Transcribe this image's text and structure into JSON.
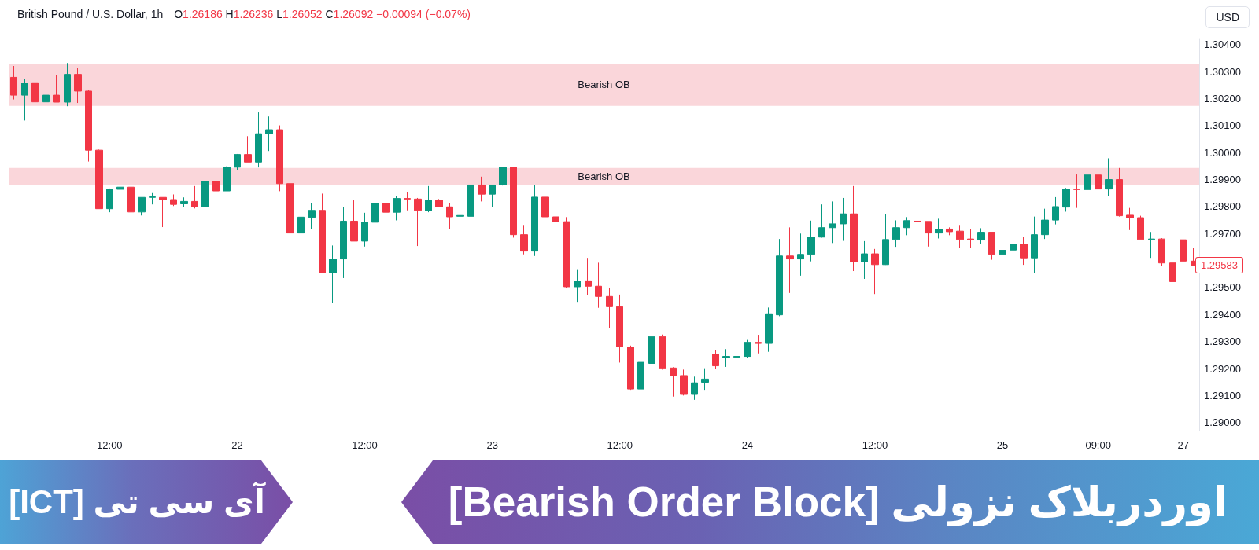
{
  "chart_data": {
    "type": "candlestick",
    "title": "اوردربلاک نزولی [Bearish Order Block]",
    "subtitle": "آی سی تی [ICT]",
    "ylabel": "USD",
    "annotations": [
      "British Pound / U.S. Dollar, 1h",
      "O1.26186 H1.26236 L1.26052 C1.26092 −0.00094 (−0.07%)",
      "1.29583"
    ],
    "categories": [
      null,
      null,
      null,
      null,
      null,
      null,
      null,
      null,
      null,
      "12:00",
      null,
      null,
      null,
      null,
      null,
      null,
      null,
      null,
      null,
      null,
      null,
      "22",
      null,
      null,
      null,
      null,
      null,
      null,
      null,
      null,
      null,
      null,
      null,
      "12:00",
      null,
      null,
      null,
      null,
      null,
      null,
      null,
      null,
      null,
      null,
      null,
      "23",
      null,
      null,
      null,
      null,
      null,
      null,
      null,
      null,
      null,
      null,
      null,
      "12:00",
      null,
      null,
      null,
      null,
      null,
      null,
      null,
      null,
      null,
      null,
      null,
      "24",
      null,
      null,
      null,
      null,
      null,
      null,
      null,
      null,
      null,
      null,
      null,
      "12:00",
      null,
      null,
      null,
      null,
      null,
      null,
      null,
      null,
      null,
      null,
      null,
      "25",
      null,
      null,
      null,
      null,
      null,
      null,
      null,
      null,
      "09:00",
      null,
      null,
      null,
      null,
      null,
      null,
      null,
      "27",
      null
    ],
    "ohlc": [
      [
        1.30279,
        1.30321,
        1.30197,
        1.30213
      ],
      [
        1.30213,
        1.30272,
        1.30119,
        1.30257
      ],
      [
        1.30259,
        1.30334,
        1.30175,
        1.30188
      ],
      [
        1.30188,
        1.30233,
        1.30127,
        1.30213
      ],
      [
        1.30213,
        1.30288,
        1.30187,
        1.30187
      ],
      [
        1.30187,
        1.30332,
        1.30172,
        1.3029
      ],
      [
        1.3029,
        1.30314,
        1.30184,
        1.30228
      ],
      [
        1.30228,
        1.30231,
        1.29967,
        1.30009
      ],
      [
        1.30009,
        1.30011,
        1.29792,
        1.29792
      ],
      [
        1.29792,
        1.29867,
        1.29779,
        1.29865
      ],
      [
        1.29864,
        1.29909,
        1.29841,
        1.29872
      ],
      [
        1.29872,
        1.29881,
        1.29767,
        1.2978
      ],
      [
        1.2978,
        1.29834,
        1.29767,
        1.29834
      ],
      [
        1.29834,
        1.2985,
        1.29808,
        1.29836
      ],
      [
        1.29834,
        1.29834,
        1.29724,
        1.29826
      ],
      [
        1.29826,
        1.29845,
        1.29802,
        1.29808
      ],
      [
        1.2981,
        1.29834,
        1.29798,
        1.29819
      ],
      [
        1.29819,
        1.29876,
        1.29793,
        1.29799
      ],
      [
        1.29799,
        1.29911,
        1.29799,
        1.29893
      ],
      [
        1.29893,
        1.29927,
        1.2985,
        1.29858
      ],
      [
        1.29858,
        1.29949,
        1.29858,
        1.29946
      ],
      [
        1.29946,
        1.29995,
        1.29936,
        1.29993
      ],
      [
        1.29993,
        1.30061,
        1.29965,
        1.29965
      ],
      [
        1.29965,
        1.30149,
        1.29945,
        1.3007
      ],
      [
        1.3007,
        1.30134,
        1.30006,
        1.30085
      ],
      [
        1.30085,
        1.30101,
        1.29857,
        1.29885
      ],
      [
        1.29885,
        1.29916,
        1.29685,
        1.29702
      ],
      [
        1.29702,
        1.29843,
        1.29654,
        1.29761
      ],
      [
        1.2976,
        1.29814,
        1.29716,
        1.29786
      ],
      [
        1.29786,
        1.29848,
        1.29555,
        1.29555
      ],
      [
        1.29555,
        1.29656,
        1.29443,
        1.29606
      ],
      [
        1.29606,
        1.29797,
        1.29535,
        1.29746
      ],
      [
        1.29746,
        1.29823,
        1.29672,
        1.29672
      ],
      [
        1.29672,
        1.29777,
        1.29652,
        1.29742
      ],
      [
        1.29742,
        1.29832,
        1.29726,
        1.29812
      ],
      [
        1.29812,
        1.29834,
        1.29761,
        1.29779
      ],
      [
        1.29779,
        1.29839,
        1.29749,
        1.2983
      ],
      [
        1.2983,
        1.29854,
        1.29786,
        1.29828
      ],
      [
        1.29828,
        1.29832,
        1.29654,
        1.29786
      ],
      [
        1.29784,
        1.29876,
        1.29779,
        1.29823
      ],
      [
        1.29823,
        1.29828,
        1.29799,
        1.29799
      ],
      [
        1.29799,
        1.29814,
        1.29716,
        1.29762
      ],
      [
        1.29764,
        1.29777,
        1.29707,
        1.29767
      ],
      [
        1.29764,
        1.29896,
        1.29764,
        1.2988
      ],
      [
        1.2988,
        1.29911,
        1.29819,
        1.29846
      ],
      [
        1.29846,
        1.2988,
        1.29798,
        1.2988
      ],
      [
        1.2988,
        1.29946,
        1.29878,
        1.29946
      ],
      [
        1.29946,
        1.29948,
        1.29685,
        1.29696
      ],
      [
        1.29696,
        1.29732,
        1.29623,
        1.29635
      ],
      [
        1.29635,
        1.29881,
        1.29617,
        1.29835
      ],
      [
        1.29835,
        1.29868,
        1.29746,
        1.29762
      ],
      [
        1.29762,
        1.29823,
        1.29701,
        1.29744
      ],
      [
        1.29744,
        1.29761,
        1.29497,
        1.29503
      ],
      [
        1.29503,
        1.29568,
        1.29447,
        1.29524
      ],
      [
        1.29525,
        1.2961,
        1.29473,
        1.29505
      ],
      [
        1.29505,
        1.29592,
        1.29425,
        1.29467
      ],
      [
        1.29467,
        1.295,
        1.2935,
        1.29429
      ],
      [
        1.29429,
        1.29474,
        1.29222,
        1.2928
      ],
      [
        1.2928,
        1.29285,
        1.29121,
        1.29124
      ],
      [
        1.29124,
        1.2924,
        1.29067,
        1.29223
      ],
      [
        1.29219,
        1.29338,
        1.29205,
        1.29319
      ],
      [
        1.29319,
        1.29326,
        1.29196,
        1.29202
      ],
      [
        1.29202,
        1.29205,
        1.29096,
        1.29174
      ],
      [
        1.29174,
        1.29196,
        1.291,
        1.29104
      ],
      [
        1.29104,
        1.2917,
        1.29084,
        1.29147
      ],
      [
        1.29149,
        1.29201,
        1.29121,
        1.29161
      ],
      [
        1.29253,
        1.29268,
        1.29199,
        1.2921
      ],
      [
        1.29241,
        1.29272,
        1.29206,
        1.29245
      ],
      [
        1.29242,
        1.2928,
        1.292,
        1.29245
      ],
      [
        1.29245,
        1.29306,
        1.2924,
        1.29297
      ],
      [
        1.29297,
        1.29325,
        1.29256,
        1.29293
      ],
      [
        1.29293,
        1.29426,
        1.29262,
        1.29403
      ],
      [
        1.29399,
        1.2968,
        1.29394,
        1.29617
      ],
      [
        1.29617,
        1.29723,
        1.2948,
        1.29606
      ],
      [
        1.29606,
        1.297,
        1.29544,
        1.29623
      ],
      [
        1.29623,
        1.29748,
        1.29597,
        1.29687
      ],
      [
        1.29687,
        1.29808,
        1.29685,
        1.29722
      ],
      [
        1.29722,
        1.29819,
        1.29665,
        1.29736
      ],
      [
        1.29736,
        1.29832,
        1.29673,
        1.29773
      ],
      [
        1.29773,
        1.29876,
        1.29561,
        1.29596
      ],
      [
        1.29596,
        1.29672,
        1.29532,
        1.29625
      ],
      [
        1.29625,
        1.29643,
        1.29476,
        1.29585
      ],
      [
        1.29585,
        1.29773,
        1.29584,
        1.29678
      ],
      [
        1.29678,
        1.29749,
        1.29651,
        1.29722
      ],
      [
        1.29722,
        1.29761,
        1.29694,
        1.29748
      ],
      [
        1.29746,
        1.2977,
        1.29685,
        1.29744
      ],
      [
        1.29745,
        1.29745,
        1.29652,
        1.29702
      ],
      [
        1.29702,
        1.29755,
        1.29682,
        1.29716
      ],
      [
        1.29717,
        1.29723,
        1.29694,
        1.29707
      ],
      [
        1.29709,
        1.29732,
        1.29647,
        1.29678
      ],
      [
        1.2968,
        1.29716,
        1.29647,
        1.29677
      ],
      [
        1.29676,
        1.2972,
        1.29663,
        1.29705
      ],
      [
        1.29705,
        1.29705,
        1.29603,
        1.29623
      ],
      [
        1.29623,
        1.29641,
        1.29597,
        1.29638
      ],
      [
        1.29639,
        1.29696,
        1.29629,
        1.2966
      ],
      [
        1.2966,
        1.29687,
        1.29584,
        1.2961
      ],
      [
        1.2961,
        1.29763,
        1.29555,
        1.29696
      ],
      [
        1.29696,
        1.29792,
        1.2968,
        1.2975
      ],
      [
        1.2975,
        1.29835,
        1.29734,
        1.298
      ],
      [
        1.29798,
        1.29869,
        1.29781,
        1.29865
      ],
      [
        1.29865,
        1.29919,
        1.29795,
        1.29863
      ],
      [
        1.29863,
        1.29964,
        1.29779,
        1.29917
      ],
      [
        1.29917,
        1.29982,
        1.29865,
        1.29865
      ],
      [
        1.29865,
        1.29979,
        1.29838,
        1.299
      ],
      [
        1.299,
        1.29943,
        1.29763,
        1.29766
      ],
      [
        1.29768,
        1.29795,
        1.29713,
        1.29758
      ],
      [
        1.29759,
        1.29766,
        1.29678,
        1.29678
      ],
      [
        1.29678,
        1.29706,
        1.2961,
        1.2968
      ],
      [
        1.2968,
        1.29683,
        1.29579,
        1.29591
      ],
      [
        1.29591,
        1.29625,
        1.2952,
        1.29522
      ],
      [
        1.29677,
        1.29677,
        1.29526,
        1.29598
      ],
      [
        1.29598,
        1.29646,
        1.29583,
        1.29583
      ]
    ],
    "colors": [
      "#f23645",
      "#089981",
      "#f23645",
      "#089981",
      "#f23645",
      "#089981",
      "#f23645",
      "#f23645",
      "#f23645",
      "#089981",
      "#089981",
      "#f23645",
      "#089981",
      "#089981",
      "#f23645",
      "#f23645",
      "#089981",
      "#f23645",
      "#089981",
      "#f23645",
      "#089981",
      "#089981",
      "#f23645",
      "#089981",
      "#089981",
      "#f23645",
      "#f23645",
      "#089981",
      "#089981",
      "#f23645",
      "#089981",
      "#089981",
      "#f23645",
      "#089981",
      "#089981",
      "#f23645",
      "#089981",
      "#f23645",
      "#f23645",
      "#089981",
      "#f23645",
      "#f23645",
      "#089981",
      "#089981",
      "#f23645",
      "#089981",
      "#089981",
      "#f23645",
      "#f23645",
      "#089981",
      "#f23645",
      "#f23645",
      "#f23645",
      "#089981",
      "#f23645",
      "#f23645",
      "#f23645",
      "#f23645",
      "#f23645",
      "#089981",
      "#089981",
      "#f23645",
      "#f23645",
      "#f23645",
      "#089981",
      "#089981",
      "#f23645",
      "#089981",
      "#089981",
      "#089981",
      "#f23645",
      "#089981",
      "#089981",
      "#f23645",
      "#089981",
      "#089981",
      "#089981",
      "#089981",
      "#089981",
      "#f23645",
      "#089981",
      "#f23645",
      "#089981",
      "#089981",
      "#089981",
      "#f23645",
      "#f23645",
      "#089981",
      "#f23645",
      "#f23645",
      "#f23645",
      "#089981",
      "#f23645",
      "#089981",
      "#089981",
      "#f23645",
      "#089981",
      "#089981",
      "#089981",
      "#089981",
      "#f23645",
      "#089981",
      "#f23645",
      "#089981",
      "#f23645",
      "#f23645",
      "#f23645",
      "#089981",
      "#f23645",
      "#f23645",
      "#f23645",
      "#f23645"
    ],
    "ylim": [
      1.2897,
      1.3042
    ],
    "yticks": [
      {
        "value": 1.29,
        "label": "1.29000"
      },
      {
        "value": 1.291,
        "label": "1.29100"
      },
      {
        "value": 1.292,
        "label": "1.29200"
      },
      {
        "value": 1.293,
        "label": "1.29300"
      },
      {
        "value": 1.294,
        "label": "1.29400"
      },
      {
        "value": 1.295,
        "label": "1.29500"
      },
      {
        "value": 1.297,
        "label": "1.29700"
      },
      {
        "value": 1.298,
        "label": "1.29800"
      },
      {
        "value": 1.299,
        "label": "1.29900"
      },
      {
        "value": 1.3,
        "label": "1.30000"
      },
      {
        "value": 1.301,
        "label": "1.30100"
      },
      {
        "value": 1.302,
        "label": "1.30200"
      },
      {
        "value": 1.303,
        "label": "1.30300"
      },
      {
        "value": 1.304,
        "label": "1.30400"
      }
    ],
    "bands": [
      {
        "axis": "y",
        "from": 1.30173,
        "to": 1.3033,
        "label": "Bearish OB",
        "color": "#fad6da"
      },
      {
        "axis": "y",
        "from": 1.29881,
        "to": 1.29943,
        "label": "Bearish OB",
        "color": "#fad6da"
      }
    ]
  }
}
